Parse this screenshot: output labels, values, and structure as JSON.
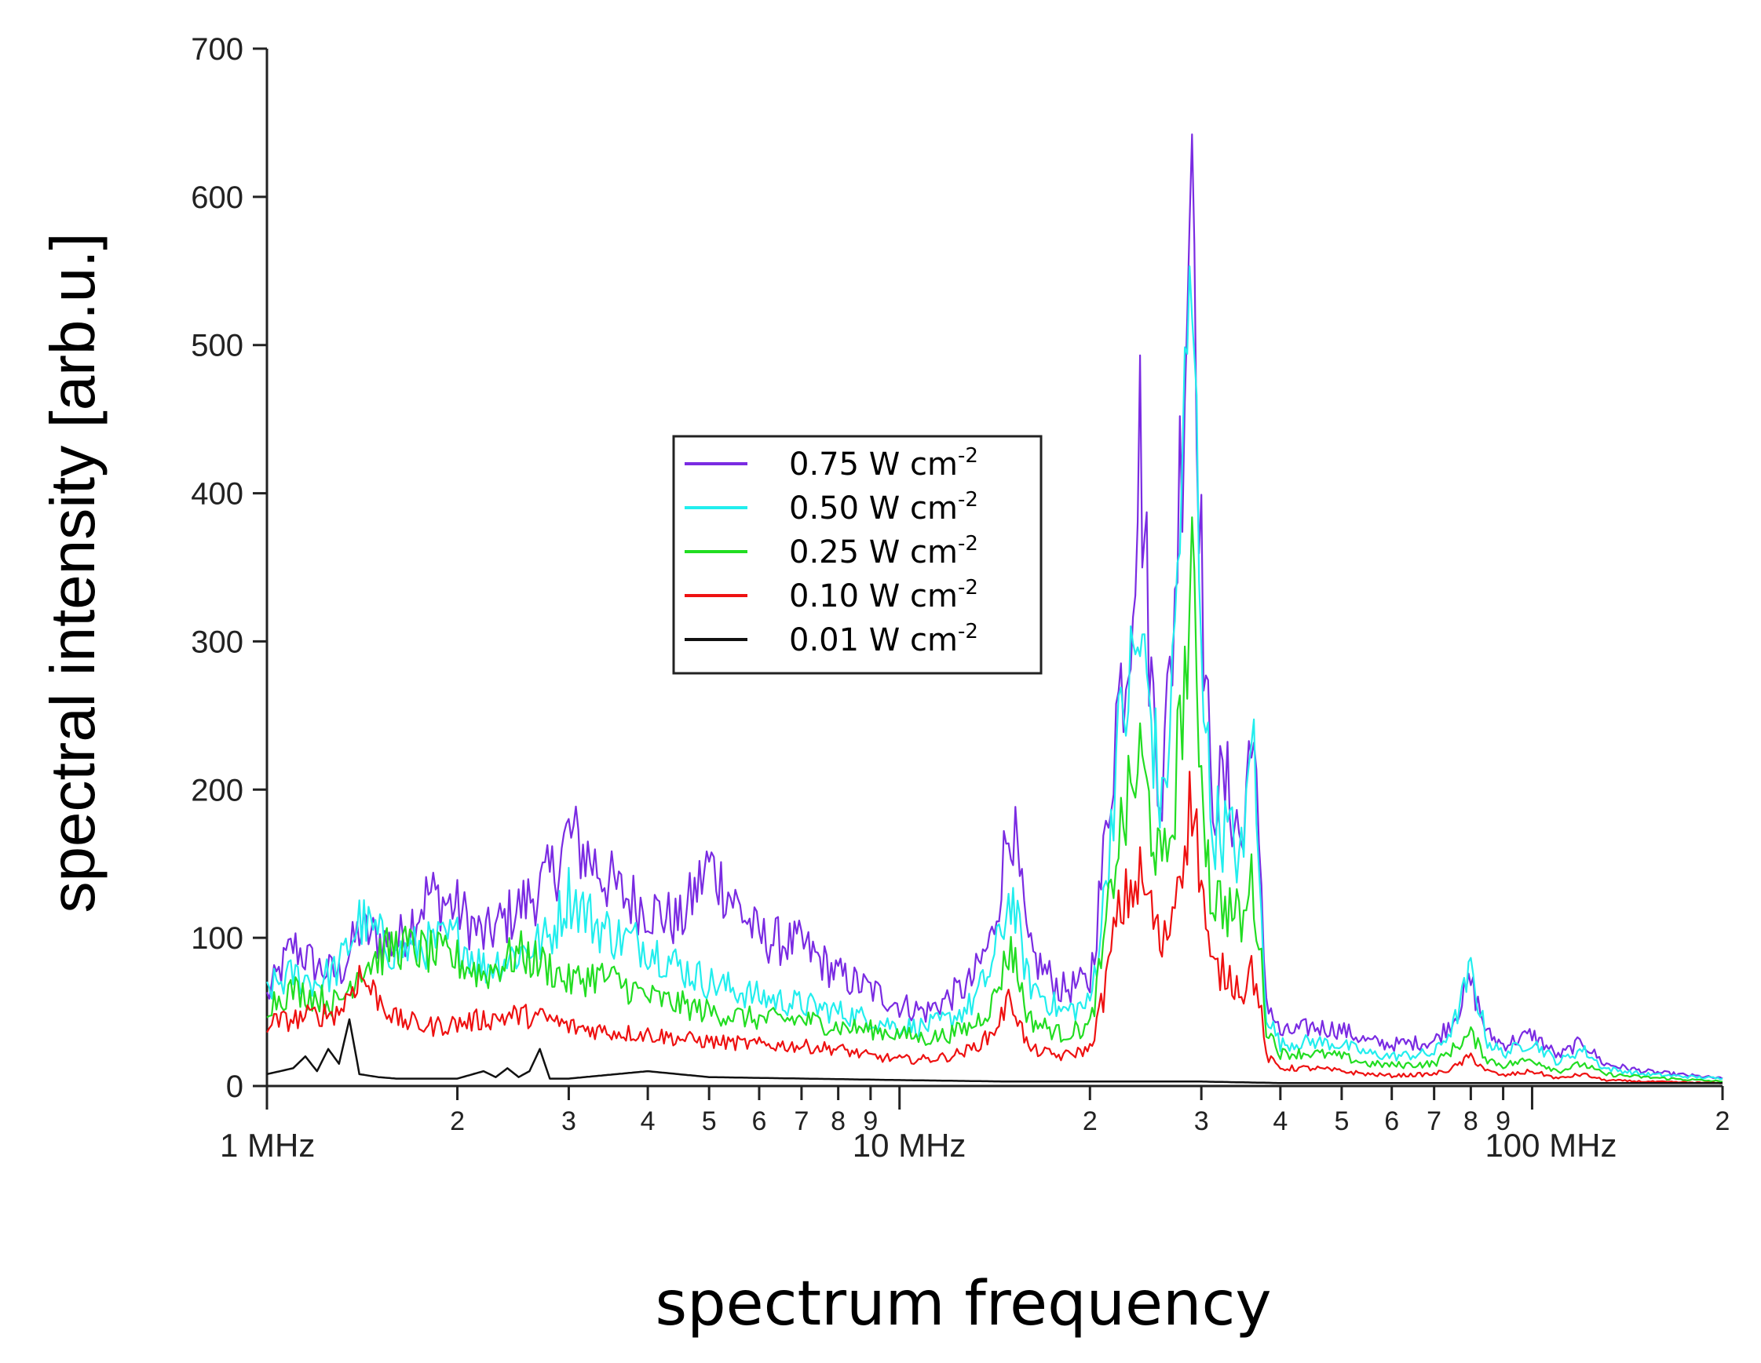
{
  "chart_data": {
    "type": "line",
    "title": "",
    "xlabel": "spectrum frequency",
    "ylabel": "spectral intensity [arb.u.]",
    "xscale": "log",
    "xlim_mhz": [
      1,
      200
    ],
    "ylim": [
      0,
      700
    ],
    "y_ticks": [
      0,
      100,
      200,
      300,
      400,
      500,
      600,
      700
    ],
    "x_major_ticks": [
      {
        "value_mhz": 1,
        "label": "1 MHz"
      },
      {
        "value_mhz": 10,
        "label": "10 MHz"
      },
      {
        "value_mhz": 100,
        "label": "100 MHz"
      }
    ],
    "x_minor_ticks": [
      {
        "value_mhz": 2,
        "label": "2"
      },
      {
        "value_mhz": 3,
        "label": "3"
      },
      {
        "value_mhz": 4,
        "label": "4"
      },
      {
        "value_mhz": 5,
        "label": "5"
      },
      {
        "value_mhz": 6,
        "label": "6"
      },
      {
        "value_mhz": 7,
        "label": "7"
      },
      {
        "value_mhz": 8,
        "label": "8"
      },
      {
        "value_mhz": 9,
        "label": "9"
      },
      {
        "value_mhz": 20,
        "label": "2"
      },
      {
        "value_mhz": 30,
        "label": "3"
      },
      {
        "value_mhz": 40,
        "label": "4"
      },
      {
        "value_mhz": 50,
        "label": "5"
      },
      {
        "value_mhz": 60,
        "label": "6"
      },
      {
        "value_mhz": 70,
        "label": "7"
      },
      {
        "value_mhz": 80,
        "label": "8"
      },
      {
        "value_mhz": 90,
        "label": "9"
      },
      {
        "value_mhz": 200,
        "label": "2"
      }
    ],
    "legend": {
      "location": "center"
    },
    "series": [
      {
        "name": "0.75 W cm",
        "sup": "-2",
        "color": "#7a2be2",
        "x_mhz": [
          1.0,
          1.1,
          1.2,
          1.3,
          1.4,
          1.6,
          1.8,
          2.0,
          2.2,
          2.5,
          2.8,
          3.0,
          3.3,
          3.6,
          4.0,
          4.5,
          5.0,
          6.0,
          7.0,
          8.0,
          9.0,
          10.0,
          11.0,
          12.0,
          13.0,
          14.0,
          15.0,
          16.0,
          18.0,
          20.0,
          21.0,
          22.0,
          23.0,
          24.0,
          25.0,
          26.0,
          27.0,
          28.0,
          29.0,
          30.0,
          31.0,
          33.0,
          35.0,
          36.0,
          37.0,
          38.0,
          40.0,
          45.0,
          50.0,
          55.0,
          60.0,
          70.0,
          75.0,
          80.0,
          85.0,
          90.0,
          100.0,
          110.0,
          120.0,
          130.0,
          150.0,
          200.0
        ],
        "y": [
          60,
          95,
          80,
          75,
          105,
          95,
          130,
          120,
          100,
          120,
          140,
          170,
          150,
          130,
          120,
          110,
          150,
          100,
          95,
          75,
          65,
          55,
          50,
          60,
          70,
          100,
          185,
          90,
          65,
          70,
          150,
          250,
          300,
          440,
          270,
          200,
          300,
          450,
          660,
          350,
          200,
          200,
          160,
          265,
          150,
          60,
          35,
          40,
          38,
          30,
          28,
          30,
          45,
          70,
          35,
          28,
          35,
          20,
          30,
          15,
          10,
          5
        ]
      },
      {
        "name": "0.50 W cm",
        "sup": "-2",
        "color": "#22eeee",
        "x_mhz": [
          1.0,
          1.1,
          1.2,
          1.3,
          1.4,
          1.6,
          1.8,
          2.0,
          2.2,
          2.5,
          2.8,
          3.0,
          3.3,
          3.6,
          4.0,
          4.5,
          5.0,
          6.0,
          7.0,
          8.0,
          9.0,
          10.0,
          11.0,
          12.0,
          13.0,
          14.0,
          15.0,
          16.0,
          18.0,
          20.0,
          21.0,
          22.0,
          23.0,
          24.0,
          25.0,
          26.0,
          27.0,
          28.0,
          29.0,
          30.0,
          31.0,
          33.0,
          35.0,
          36.0,
          37.0,
          38.0,
          40.0,
          45.0,
          50.0,
          55.0,
          60.0,
          70.0,
          75.0,
          80.0,
          85.0,
          90.0,
          100.0,
          110.0,
          120.0,
          130.0,
          150.0,
          200.0
        ],
        "y": [
          65,
          75,
          70,
          80,
          112,
          90,
          95,
          100,
          80,
          90,
          100,
          130,
          110,
          100,
          95,
          80,
          70,
          60,
          55,
          50,
          45,
          40,
          40,
          45,
          55,
          80,
          130,
          70,
          50,
          55,
          120,
          220,
          270,
          300,
          250,
          180,
          270,
          420,
          530,
          320,
          180,
          170,
          150,
          260,
          140,
          50,
          28,
          30,
          28,
          22,
          20,
          22,
          40,
          78,
          30,
          22,
          30,
          16,
          25,
          12,
          8,
          5
        ]
      },
      {
        "name": "0.25 W cm",
        "sup": "-2",
        "color": "#22dd22",
        "x_mhz": [
          1.0,
          1.1,
          1.2,
          1.3,
          1.4,
          1.6,
          1.8,
          2.0,
          2.2,
          2.5,
          2.8,
          3.0,
          3.3,
          3.6,
          4.0,
          4.5,
          5.0,
          6.0,
          7.0,
          8.0,
          9.0,
          10.0,
          11.0,
          12.0,
          13.0,
          14.0,
          15.0,
          16.0,
          18.0,
          20.0,
          21.0,
          22.0,
          23.0,
          24.0,
          25.0,
          26.0,
          27.0,
          28.0,
          29.0,
          30.0,
          31.0,
          33.0,
          35.0,
          36.0,
          37.0,
          38.0,
          40.0,
          45.0,
          50.0,
          55.0,
          60.0,
          70.0,
          75.0,
          80.0,
          85.0,
          90.0,
          100.0,
          110.0,
          120.0,
          130.0,
          150.0,
          200.0
        ],
        "y": [
          55,
          65,
          60,
          55,
          80,
          95,
          90,
          85,
          75,
          90,
          80,
          70,
          75,
          70,
          60,
          55,
          50,
          45,
          45,
          40,
          38,
          35,
          32,
          35,
          40,
          55,
          95,
          45,
          35,
          40,
          90,
          160,
          190,
          220,
          180,
          140,
          180,
          260,
          330,
          220,
          130,
          120,
          110,
          140,
          100,
          40,
          22,
          22,
          20,
          15,
          14,
          15,
          25,
          35,
          18,
          14,
          18,
          10,
          15,
          8,
          6,
          3
        ]
      },
      {
        "name": "0.10 W cm",
        "sup": "-2",
        "color": "#ee1111",
        "x_mhz": [
          1.0,
          1.1,
          1.2,
          1.3,
          1.4,
          1.6,
          1.8,
          2.0,
          2.2,
          2.5,
          2.8,
          3.0,
          3.3,
          3.6,
          4.0,
          4.5,
          5.0,
          6.0,
          7.0,
          8.0,
          9.0,
          10.0,
          11.0,
          12.0,
          13.0,
          14.0,
          15.0,
          16.0,
          18.0,
          20.0,
          21.0,
          22.0,
          23.0,
          24.0,
          25.0,
          26.0,
          27.0,
          28.0,
          29.0,
          30.0,
          31.0,
          33.0,
          35.0,
          36.0,
          37.0,
          38.0,
          40.0,
          45.0,
          50.0,
          55.0,
          60.0,
          70.0,
          75.0,
          80.0,
          85.0,
          90.0,
          100.0,
          110.0,
          120.0,
          130.0,
          150.0,
          200.0
        ],
        "y": [
          42,
          45,
          48,
          50,
          75,
          45,
          40,
          42,
          45,
          48,
          45,
          40,
          38,
          36,
          35,
          32,
          30,
          28,
          27,
          25,
          20,
          18,
          18,
          20,
          25,
          35,
          60,
          25,
          20,
          25,
          60,
          110,
          130,
          140,
          120,
          90,
          120,
          160,
          195,
          140,
          80,
          75,
          65,
          80,
          60,
          20,
          12,
          12,
          10,
          8,
          7,
          8,
          12,
          20,
          10,
          7,
          10,
          5,
          8,
          4,
          3,
          2
        ]
      },
      {
        "name": "0.01 W cm",
        "sup": "-2",
        "color": "#111111",
        "x_mhz": [
          1.0,
          1.1,
          1.15,
          1.2,
          1.25,
          1.3,
          1.35,
          1.4,
          1.5,
          1.6,
          2.0,
          2.2,
          2.3,
          2.4,
          2.5,
          2.6,
          2.7,
          2.8,
          3.0,
          4.0,
          5.0,
          10.0,
          15.0,
          20.0,
          30.0,
          40.0,
          60.0,
          100.0,
          200.0
        ],
        "y": [
          8,
          12,
          20,
          10,
          25,
          15,
          45,
          8,
          6,
          5,
          5,
          10,
          6,
          12,
          6,
          10,
          25,
          5,
          5,
          10,
          6,
          4,
          3,
          3,
          3,
          2,
          2,
          2,
          2
        ]
      }
    ]
  }
}
